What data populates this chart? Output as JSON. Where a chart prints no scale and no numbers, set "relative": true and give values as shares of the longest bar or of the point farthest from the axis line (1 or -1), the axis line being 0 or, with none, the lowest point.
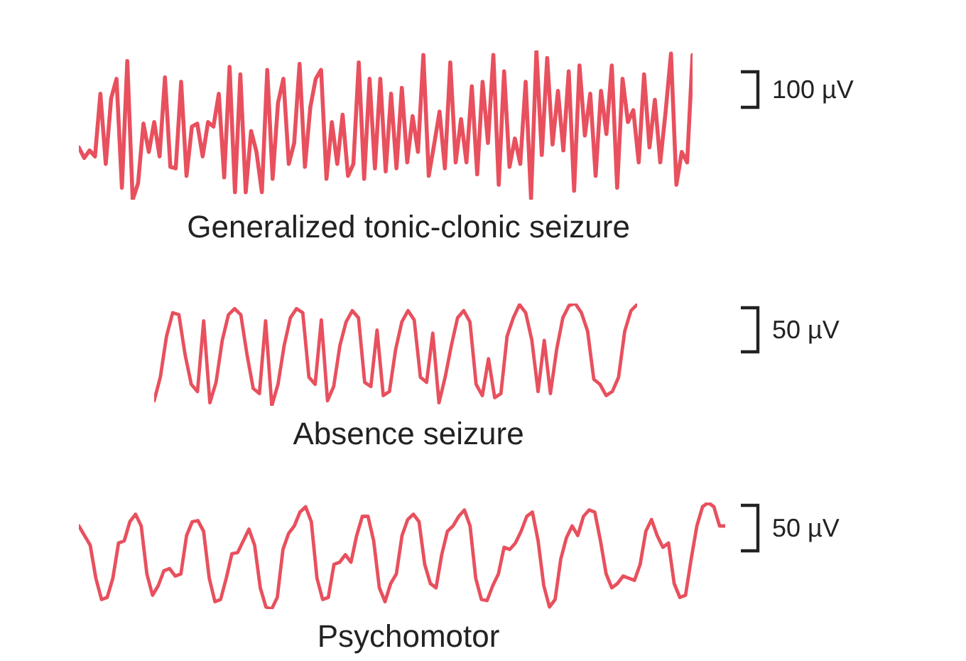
{
  "chart_data": [
    {
      "type": "line",
      "relative": true,
      "title": "Generalized tonic-clonic seizure",
      "annotations": [
        "100 µV"
      ],
      "categories": [
        null,
        null,
        null,
        null,
        null,
        null,
        null,
        null,
        null,
        null,
        null,
        null,
        null,
        null,
        null,
        null,
        null,
        null,
        null,
        null,
        null,
        null,
        null,
        null,
        null,
        null,
        null,
        null,
        null,
        null,
        null,
        null,
        null,
        null,
        null,
        null,
        null,
        null,
        null,
        null,
        null,
        null,
        null,
        null,
        null,
        null,
        null,
        null,
        null,
        null,
        null,
        null,
        null,
        null,
        null,
        null,
        null,
        null,
        null,
        null,
        null,
        null,
        null,
        null,
        null,
        null,
        null,
        null,
        null,
        null,
        null,
        null,
        null,
        null,
        null,
        null,
        null,
        null,
        null,
        null,
        null,
        null,
        null,
        null,
        null,
        null,
        null,
        null,
        null,
        null,
        null,
        null,
        null,
        null,
        null,
        null,
        null,
        null,
        null,
        null,
        null,
        null,
        null,
        null,
        null,
        null,
        null,
        null,
        null,
        null,
        null,
        null,
        null,
        null,
        null
      ],
      "series": [
        {
          "color": "#e8505e",
          "values": [
            0.35,
            0.28,
            0.33,
            0.29,
            0.71,
            0.24,
            0.68,
            0.81,
            0.08,
            0.93,
            0.0,
            0.11,
            0.51,
            0.32,
            0.52,
            0.29,
            0.82,
            0.22,
            0.21,
            0.79,
            0.16,
            0.49,
            0.51,
            0.29,
            0.52,
            0.49,
            0.71,
            0.15,
            0.89,
            0.05,
            0.84,
            0.05,
            0.46,
            0.32,
            0.05,
            0.87,
            0.14,
            0.65,
            0.81,
            0.24,
            0.38,
            0.91,
            0.22,
            0.62,
            0.81,
            0.87,
            0.14,
            0.52,
            0.24,
            0.57,
            0.16,
            0.24,
            0.92,
            0.14,
            0.81,
            0.21,
            0.81,
            0.19,
            0.71,
            0.21,
            0.75,
            0.25,
            0.56,
            0.32,
            0.97,
            0.16,
            0.37,
            0.59,
            0.21,
            0.92,
            0.25,
            0.54,
            0.25,
            0.76,
            0.17,
            0.79,
            0.38,
            0.97,
            0.1,
            0.86,
            0.22,
            0.41,
            0.24,
            0.79,
            0.01,
            1.0,
            0.3,
            0.95,
            0.37,
            0.73,
            0.33,
            0.86,
            0.06,
            0.9,
            0.43,
            0.71,
            0.16,
            0.73,
            0.44,
            0.9,
            0.08,
            0.81,
            0.52,
            0.6,
            0.25,
            0.84,
            0.35,
            0.67,
            0.25,
            0.59,
            0.98,
            0.1,
            0.32,
            0.25,
            0.97
          ]
        }
      ]
    },
    {
      "type": "line",
      "relative": true,
      "title": "Absence seizure",
      "annotations": [
        "50 µV"
      ],
      "categories": [
        null,
        null,
        null,
        null,
        null,
        null,
        null,
        null,
        null,
        null,
        null,
        null,
        null,
        null,
        null,
        null,
        null,
        null,
        null,
        null,
        null,
        null,
        null,
        null,
        null,
        null,
        null,
        null,
        null,
        null,
        null,
        null,
        null,
        null,
        null,
        null,
        null,
        null,
        null,
        null,
        null,
        null,
        null,
        null,
        null,
        null,
        null,
        null,
        null,
        null,
        null,
        null,
        null,
        null,
        null,
        null,
        null,
        null,
        null,
        null,
        null,
        null,
        null,
        null,
        null,
        null,
        null,
        null,
        null,
        null,
        null,
        null,
        null,
        null,
        null,
        null,
        null,
        null,
        null
      ],
      "series": [
        {
          "color": "#e8505e",
          "values": [
            0.05,
            0.28,
            0.68,
            0.91,
            0.89,
            0.5,
            0.21,
            0.14,
            0.83,
            0.03,
            0.23,
            0.64,
            0.89,
            0.95,
            0.89,
            0.5,
            0.17,
            0.12,
            0.83,
            0.0,
            0.21,
            0.59,
            0.86,
            0.95,
            0.91,
            0.28,
            0.21,
            0.84,
            0.05,
            0.19,
            0.59,
            0.82,
            0.93,
            0.86,
            0.23,
            0.19,
            0.74,
            0.1,
            0.14,
            0.55,
            0.82,
            0.93,
            0.84,
            0.28,
            0.23,
            0.71,
            0.03,
            0.28,
            0.59,
            0.86,
            0.93,
            0.82,
            0.21,
            0.1,
            0.46,
            0.08,
            0.12,
            0.68,
            0.86,
            0.99,
            0.91,
            0.64,
            0.14,
            0.64,
            0.12,
            0.55,
            0.86,
            0.98,
            1.0,
            0.91,
            0.73,
            0.26,
            0.21,
            0.1,
            0.14,
            0.28,
            0.73,
            0.93,
            0.99
          ]
        }
      ]
    },
    {
      "type": "line",
      "relative": true,
      "title": "Psychomotor",
      "annotations": [
        "50 µV"
      ],
      "categories": [
        null,
        null,
        null,
        null,
        null,
        null,
        null,
        null,
        null,
        null,
        null,
        null,
        null,
        null,
        null,
        null,
        null,
        null,
        null,
        null,
        null,
        null,
        null,
        null,
        null,
        null,
        null,
        null,
        null,
        null,
        null,
        null,
        null,
        null,
        null,
        null,
        null,
        null,
        null,
        null,
        null,
        null,
        null,
        null,
        null,
        null,
        null,
        null,
        null,
        null,
        null,
        null,
        null,
        null,
        null,
        null,
        null,
        null,
        null,
        null,
        null,
        null,
        null,
        null,
        null,
        null,
        null,
        null,
        null,
        null,
        null,
        null,
        null,
        null,
        null,
        null,
        null,
        null,
        null,
        null,
        null,
        null,
        null,
        null,
        null,
        null,
        null,
        null,
        null,
        null,
        null,
        null,
        null,
        null,
        null,
        null,
        null,
        null,
        null,
        null,
        null,
        null,
        null,
        null,
        null,
        null,
        null,
        null,
        null,
        null,
        null,
        null,
        null,
        null,
        null
      ],
      "series": [
        {
          "color": "#e8505e",
          "values": [
            0.78,
            0.69,
            0.6,
            0.29,
            0.09,
            0.11,
            0.29,
            0.62,
            0.64,
            0.82,
            0.89,
            0.78,
            0.33,
            0.13,
            0.22,
            0.36,
            0.38,
            0.31,
            0.33,
            0.69,
            0.82,
            0.83,
            0.73,
            0.29,
            0.07,
            0.09,
            0.29,
            0.52,
            0.53,
            0.64,
            0.75,
            0.6,
            0.2,
            0.02,
            0.0,
            0.11,
            0.56,
            0.71,
            0.78,
            0.91,
            0.96,
            0.82,
            0.29,
            0.09,
            0.11,
            0.42,
            0.44,
            0.51,
            0.44,
            0.69,
            0.87,
            0.87,
            0.64,
            0.2,
            0.07,
            0.24,
            0.33,
            0.69,
            0.84,
            0.89,
            0.82,
            0.42,
            0.24,
            0.2,
            0.51,
            0.73,
            0.78,
            0.87,
            0.93,
            0.78,
            0.29,
            0.09,
            0.08,
            0.22,
            0.33,
            0.58,
            0.56,
            0.62,
            0.73,
            0.87,
            0.91,
            0.64,
            0.22,
            0.02,
            0.09,
            0.47,
            0.67,
            0.78,
            0.69,
            0.87,
            0.93,
            0.91,
            0.64,
            0.33,
            0.2,
            0.24,
            0.31,
            0.29,
            0.27,
            0.42,
            0.73,
            0.84,
            0.69,
            0.58,
            0.62,
            0.24,
            0.11,
            0.13,
            0.47,
            0.78,
            0.96,
            1.0,
            0.96,
            0.78,
            0.78
          ]
        }
      ]
    }
  ]
}
